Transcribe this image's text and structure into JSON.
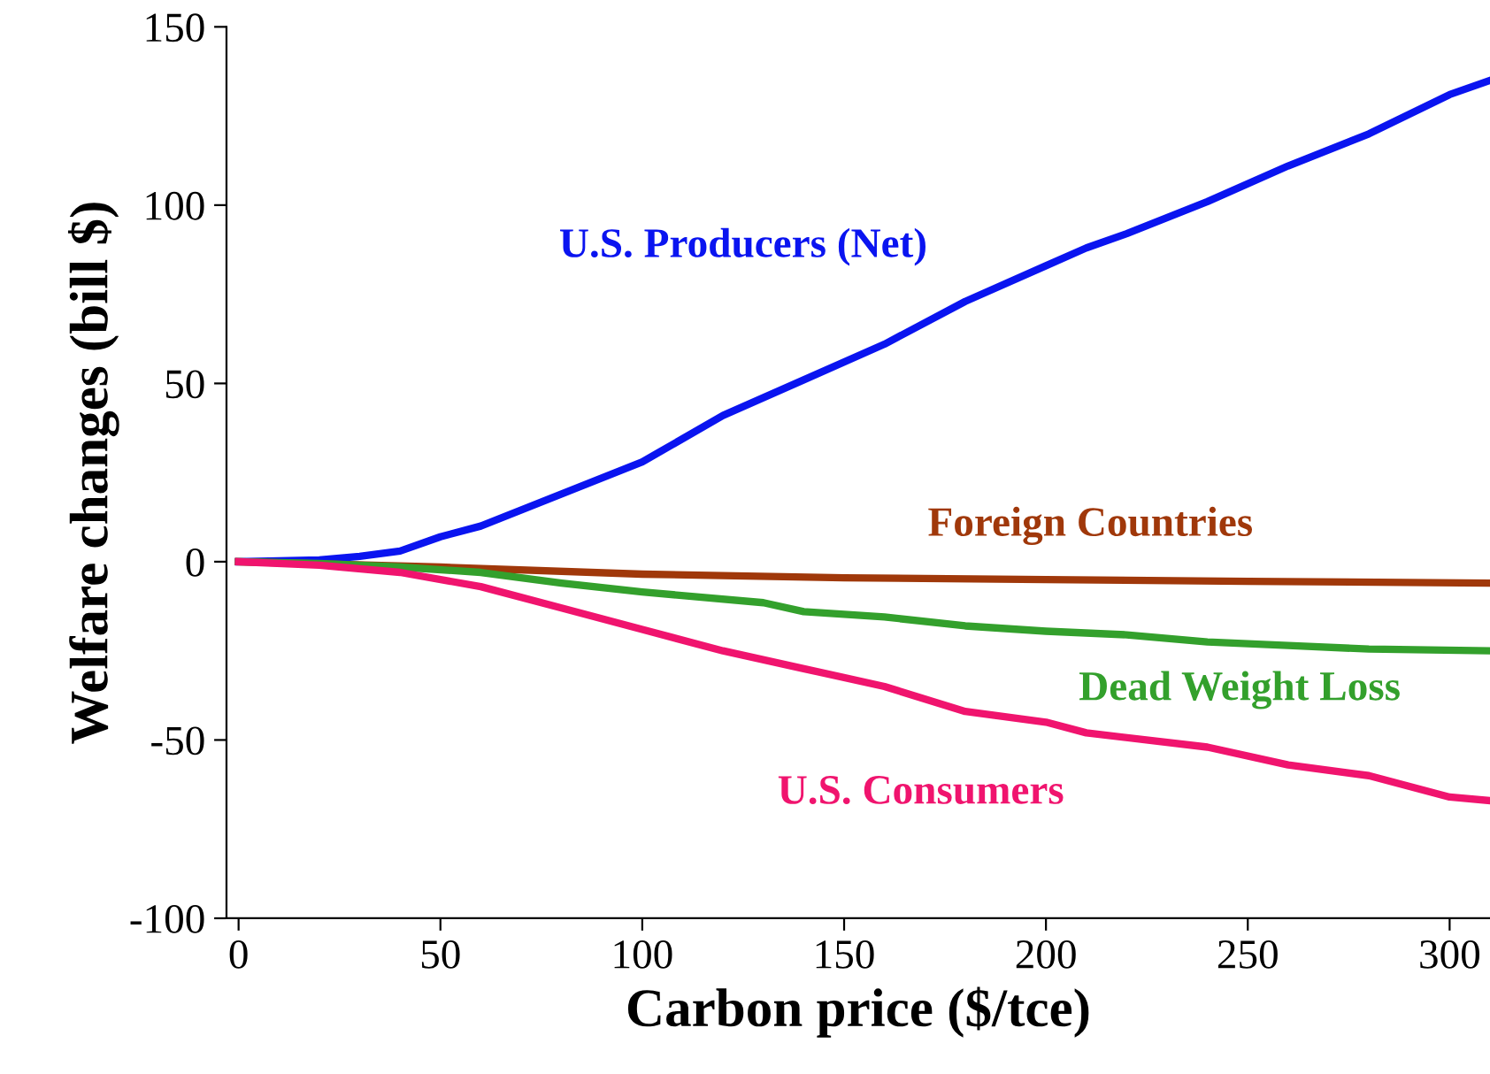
{
  "chart_data": {
    "type": "line",
    "xlabel": "Carbon price ($/tce)",
    "ylabel": "Welfare changes (bill $)",
    "xlim": [
      -3,
      310
    ],
    "ylim": [
      -100,
      150
    ],
    "xticks": [
      0,
      50,
      100,
      150,
      200,
      250,
      300
    ],
    "yticks": [
      -100,
      -50,
      0,
      50,
      100,
      150
    ],
    "grid": false,
    "legend": false,
    "marker": "none",
    "line_style": "solid",
    "series": [
      {
        "name": "U.S. Producers (Net)",
        "color": "#0a14f0",
        "x": [
          0,
          20,
          30,
          40,
          50,
          60,
          80,
          100,
          120,
          140,
          160,
          180,
          200,
          210,
          220,
          240,
          260,
          280,
          300,
          310
        ],
        "values": [
          0,
          0.5,
          1.5,
          3,
          7,
          10,
          19,
          28,
          41,
          51,
          61,
          73,
          83,
          88,
          92,
          101,
          111,
          120,
          131,
          135
        ]
      },
      {
        "name": "Foreign Countries",
        "color": "#a0380a",
        "x": [
          0,
          50,
          100,
          150,
          200,
          250,
          310
        ],
        "values": [
          0,
          -1.5,
          -3.5,
          -4.5,
          -5,
          -5.5,
          -6
        ]
      },
      {
        "name": "Dead Weight Loss",
        "color": "#33a02c",
        "x": [
          0,
          20,
          40,
          60,
          80,
          100,
          130,
          140,
          160,
          180,
          200,
          220,
          240,
          260,
          280,
          310
        ],
        "values": [
          0,
          -0.5,
          -1.5,
          -3,
          -6,
          -8.5,
          -11.5,
          -14,
          -15.5,
          -18,
          -19.5,
          -20.5,
          -22.5,
          -23.5,
          -24.5,
          -25
        ]
      },
      {
        "name": "U.S. Consumers",
        "color": "#f0146e",
        "x": [
          0,
          20,
          40,
          60,
          80,
          100,
          120,
          140,
          160,
          180,
          200,
          210,
          240,
          260,
          280,
          300,
          310
        ],
        "values": [
          0,
          -1,
          -3,
          -7,
          -13,
          -19,
          -25,
          -30,
          -35,
          -42,
          -45,
          -48,
          -52,
          -57,
          -60,
          -66,
          -67
        ]
      }
    ]
  }
}
